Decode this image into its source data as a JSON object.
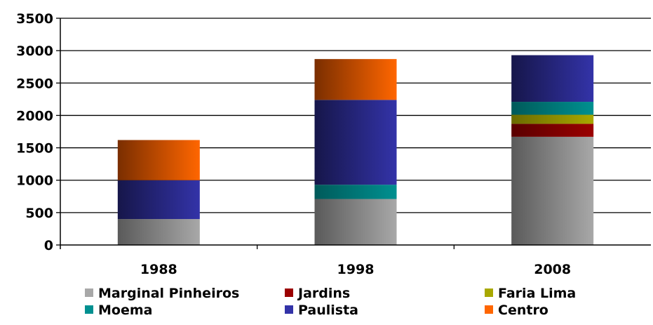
{
  "chart_data": {
    "type": "bar",
    "stacked": true,
    "title": "",
    "xlabel": "",
    "ylabel": "",
    "ylim": [
      0,
      3500
    ],
    "yticks": [
      0,
      500,
      1000,
      1500,
      2000,
      2500,
      3000,
      3500
    ],
    "ytick_labels": [
      "0",
      "500",
      "1000",
      "1500",
      "2000",
      "2500",
      "3000",
      "3500"
    ],
    "grid": true,
    "legend": "bottom",
    "categories": [
      "1988",
      "1998",
      "2008"
    ],
    "series": [
      {
        "name": "Marginal Pinheiros",
        "values": [
          400,
          710,
          1670
        ],
        "color_light": "#a8a8a8",
        "color_dark": "#5a5a5a"
      },
      {
        "name": "Jardins",
        "values": [
          0,
          0,
          200
        ],
        "color_light": "#9b0000",
        "color_dark": "#5a0000"
      },
      {
        "name": "Faria Lima",
        "values": [
          0,
          0,
          140
        ],
        "color_light": "#a8a800",
        "color_dark": "#6b6b00"
      },
      {
        "name": "Moema",
        "values": [
          0,
          220,
          200
        ],
        "color_light": "#009090",
        "color_dark": "#005a5a"
      },
      {
        "name": "Paulista",
        "values": [
          600,
          1310,
          720
        ],
        "color_light": "#3333a8",
        "color_dark": "#16164a"
      },
      {
        "name": "Centro",
        "values": [
          620,
          630,
          0
        ],
        "color_light": "#ff6600",
        "color_dark": "#7a2e00"
      }
    ]
  }
}
